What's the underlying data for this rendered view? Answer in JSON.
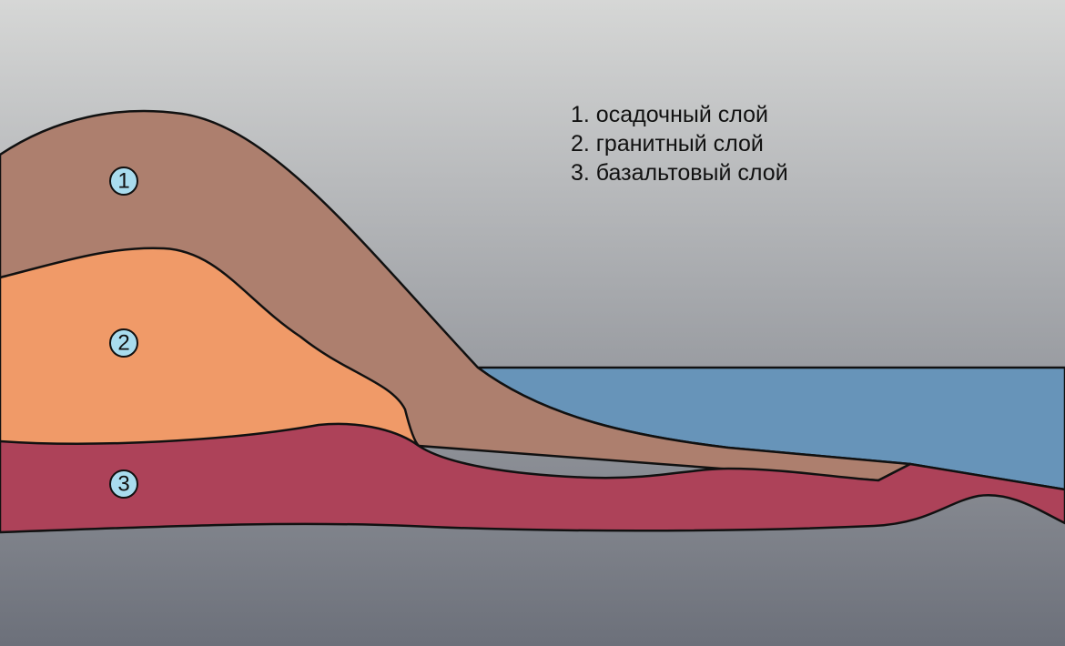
{
  "legend": [
    "1. осадочный слой",
    "2. гранитный слой",
    "3. базальтовый слой"
  ],
  "markers": [
    "1",
    "2",
    "3"
  ]
}
